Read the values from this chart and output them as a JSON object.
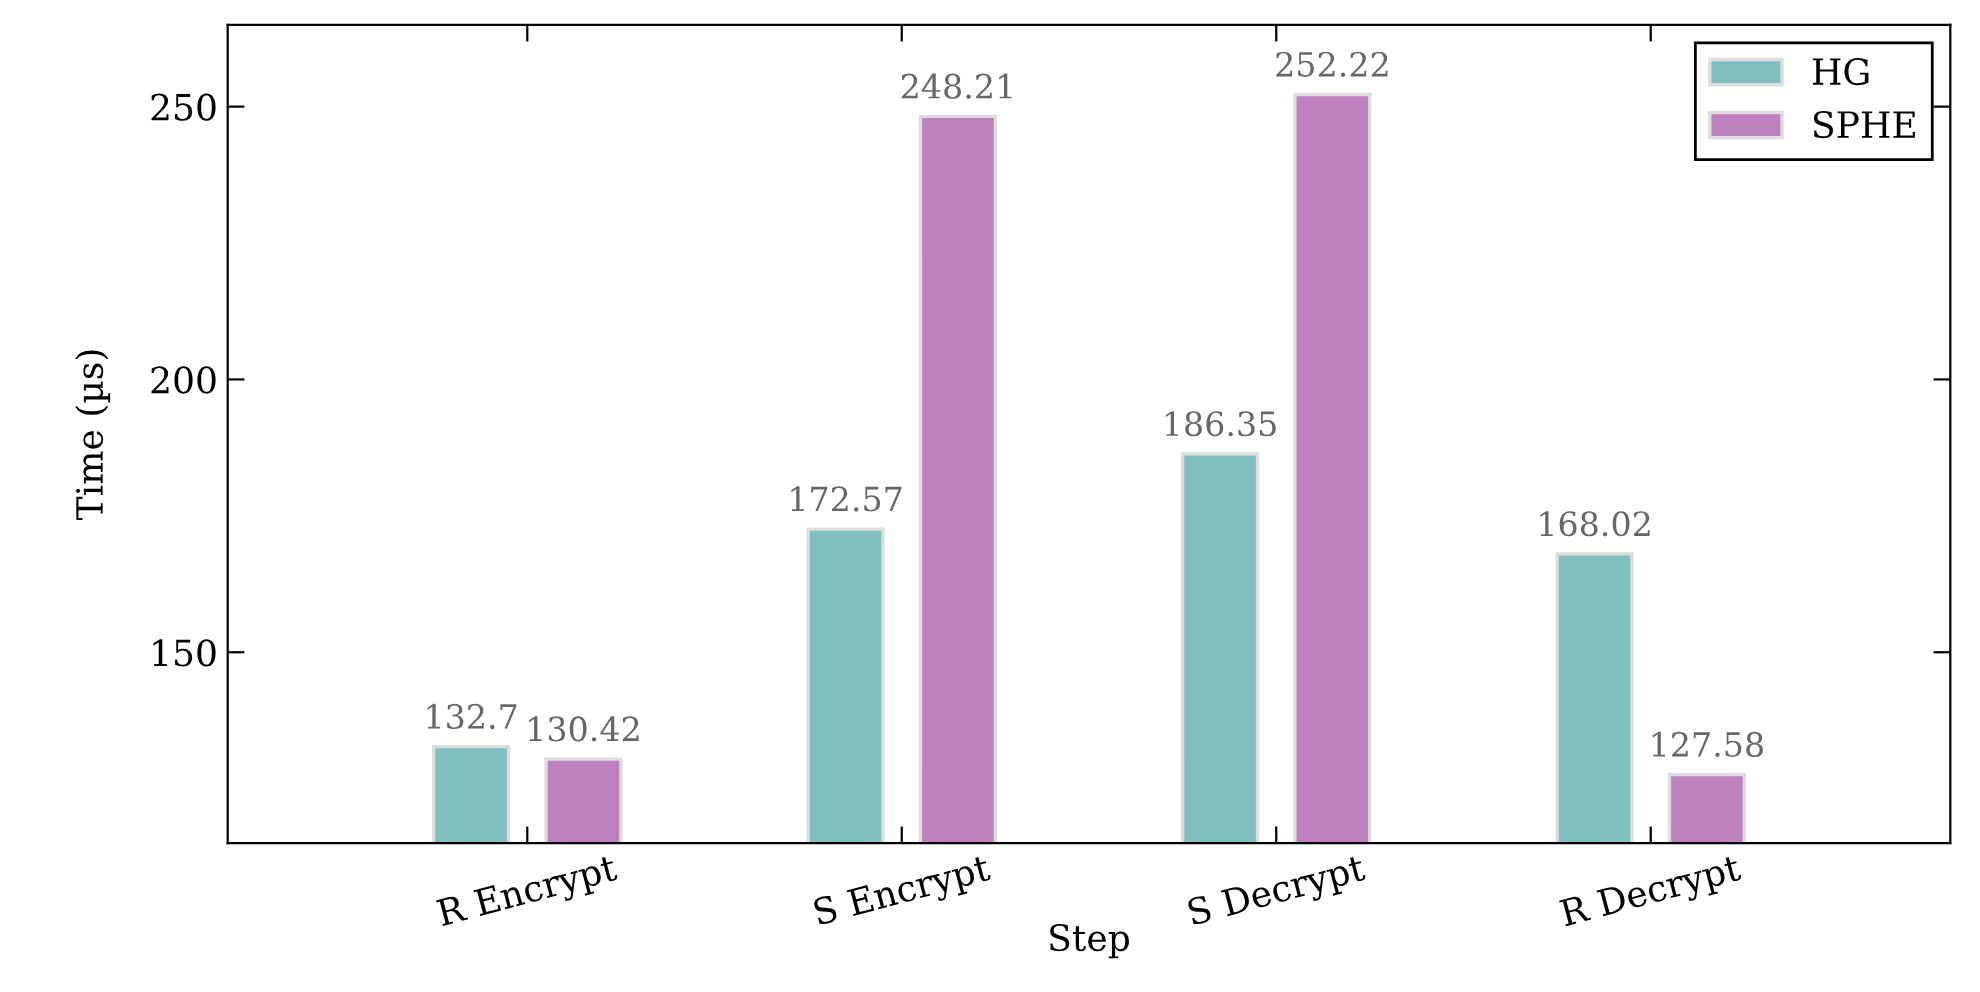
{
  "chart_data": {
    "type": "bar",
    "xlabel": "Step",
    "ylabel": "Time (µs)",
    "categories": [
      "R Encrypt",
      "S Encrypt",
      "S Decrypt",
      "R Decrypt"
    ],
    "series": [
      {
        "name": "HG",
        "color": "#80bfbf",
        "values": [
          132.7,
          172.57,
          186.35,
          168.02
        ]
      },
      {
        "name": "SPHE",
        "color": "#bf80bf",
        "values": [
          130.42,
          248.21,
          252.22,
          127.58
        ]
      }
    ],
    "ylim": [
      115,
      265
    ],
    "yticks": [
      150,
      200,
      250
    ],
    "data_labels": true,
    "legend": "top right",
    "grid": false
  }
}
